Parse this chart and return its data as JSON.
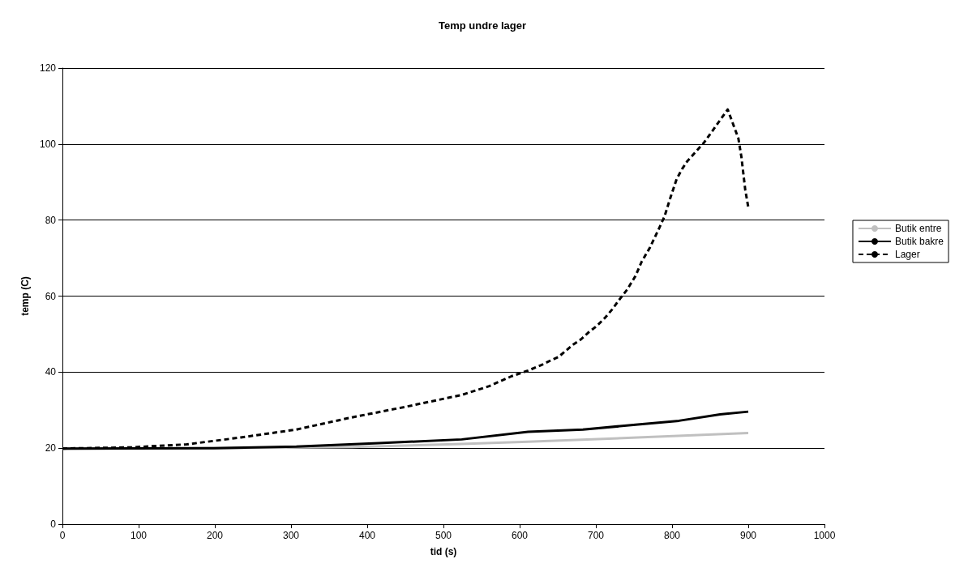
{
  "chart_data": {
    "type": "line",
    "title": "Temp undre lager",
    "xlabel": "tid (s)",
    "ylabel": "temp (C)",
    "xlim": [
      0,
      1000
    ],
    "xticks": [
      0,
      100,
      200,
      300,
      400,
      500,
      600,
      700,
      800,
      900,
      1000
    ],
    "ylim": [
      0,
      120
    ],
    "yticks": [
      0,
      20,
      40,
      60,
      80,
      100,
      120
    ],
    "grid": "y",
    "legend": "right",
    "marker": "none",
    "series": [
      {
        "name": "Butik entre",
        "color": "#c0c0c0",
        "line_style": "solid",
        "x": [
          0,
          200,
          380,
          524,
          611,
          755,
          900
        ],
        "values": [
          19.9,
          20.0,
          20.3,
          21.1,
          21.7,
          22.8,
          24.0
        ]
      },
      {
        "name": "Butik bakre",
        "color": "#000000",
        "line_style": "solid",
        "x": [
          0,
          198,
          307,
          415,
          524,
          611,
          683,
          755,
          809,
          863,
          900
        ],
        "values": [
          19.9,
          20.0,
          20.4,
          21.3,
          22.3,
          24.3,
          24.9,
          26.2,
          27.2,
          28.9,
          29.6
        ]
      },
      {
        "name": "Lager",
        "color": "#000000",
        "line_style": "dashed",
        "x": [
          0,
          90,
          163,
          234,
          307,
          380,
          451,
          524,
          560,
          589,
          611,
          629,
          640,
          651,
          661,
          670,
          681,
          690,
          701,
          712,
          721,
          732,
          741,
          752,
          760,
          771,
          781,
          790,
          798,
          806,
          813,
          820,
          842,
          873,
          887,
          891,
          896,
          900
        ],
        "values": [
          19.9,
          20.2,
          21.0,
          22.8,
          24.9,
          28.1,
          30.9,
          34.0,
          36.3,
          38.9,
          40.4,
          41.9,
          43.0,
          44.0,
          45.7,
          47.2,
          48.7,
          50.4,
          52.1,
          54.3,
          56.4,
          59.4,
          61.7,
          65.3,
          69.0,
          72.8,
          77.0,
          80.9,
          86.0,
          90.8,
          93.4,
          95.5,
          100.4,
          109.1,
          101.5,
          96.6,
          88.0,
          83.4
        ]
      }
    ]
  }
}
